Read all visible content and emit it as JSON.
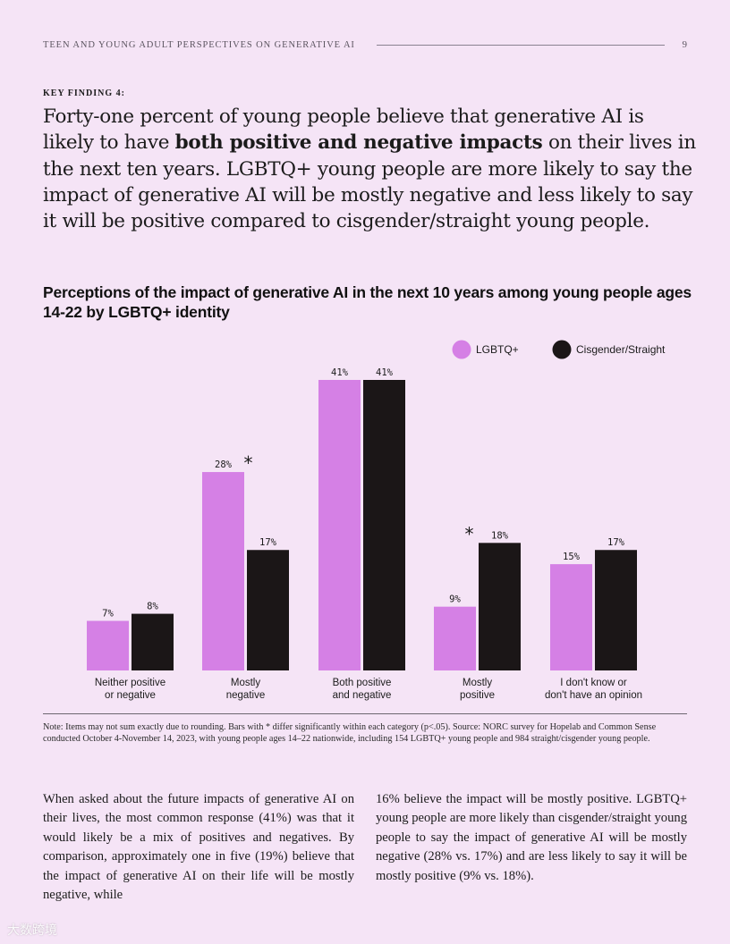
{
  "header": {
    "title": "TEEN AND YOUNG ADULT PERSPECTIVES ON GENERATIVE AI",
    "page_number": "9"
  },
  "key_finding": {
    "label": "KEY FINDING 4:",
    "text_before": "Forty-one percent of young people believe that generative AI is likely to have ",
    "text_bold": "both positive and negative impacts",
    "text_after": " on their lives in the next ten years. LGBTQ+ young people are more likely to say the impact of generative AI will be mostly negative and less likely to say it will be positive compared to cisgender/straight young people."
  },
  "chart_title": "Perceptions of the impact of generative AI in the next 10 years among young people ages 14-22 by LGBTQ+ identity",
  "chart_data": {
    "type": "bar",
    "title": "Perceptions of the impact of generative AI in the next 10 years among young people ages 14-22 by LGBTQ+ identity",
    "categories": [
      [
        "Neither positive",
        "or negative"
      ],
      [
        "Mostly",
        "negative"
      ],
      [
        "Both positive",
        "and negative"
      ],
      [
        "Mostly",
        "positive"
      ],
      [
        "I don't know or",
        "don't have an opinion"
      ]
    ],
    "series": [
      {
        "name": "LGBTQ+",
        "color": "#d580e5",
        "values": [
          7,
          28,
          41,
          9,
          15
        ]
      },
      {
        "name": "Cisgender/Straight",
        "color": "#1b1617",
        "values": [
          8,
          17,
          41,
          18,
          17
        ]
      }
    ],
    "value_suffix": "%",
    "significance_marker": "*",
    "significant_categories": [
      1,
      3
    ],
    "ylim": [
      0,
      41
    ],
    "legend_position": "top-right",
    "grid": false
  },
  "note": "Note: Items may not sum exactly due to rounding. Bars with * differ significantly within each category (p<.05). Source: NORC survey for Hopelab and Common Sense conducted October 4-November 14, 2023, with young people ages 14–22 nationwide, including 154 LGBTQ+ young people and 984 straight/cisgender young people.",
  "body": {
    "left": "When asked about the future impacts of generative AI on their lives, the most common response (41%) was that it would likely be a mix of positives and negatives. By comparison, approximately one in five (19%) believe that the impact of generative AI on their life will be mostly negative, while",
    "right": "16% believe the impact will be mostly positive. LGBTQ+ young people are more likely than cisgender/straight young people to say the impact of generative AI will be mostly negative (28% vs. 17%) and are less likely to say it will be mostly positive (9% vs. 18%)."
  },
  "watermark": "大数跨境"
}
